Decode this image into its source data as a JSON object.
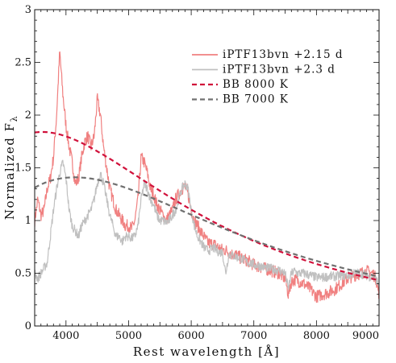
{
  "chart_data": {
    "type": "line",
    "title": "",
    "xlabel": "Rest wavelength [Å]",
    "ylabel": "Normalized F",
    "ylabel_subscript": "λ",
    "xlim": [
      3500,
      9000
    ],
    "ylim": [
      0,
      3
    ],
    "grid": false,
    "legend_placement": "top-right",
    "x_ticks": [
      4000,
      5000,
      6000,
      7000,
      8000,
      9000
    ],
    "x_tick_labels": [
      "4000",
      "5000",
      "6000",
      "7000",
      "8000",
      "9000"
    ],
    "y_ticks": [
      0,
      0.5,
      1,
      1.5,
      2,
      2.5,
      3
    ],
    "y_tick_labels": [
      "0",
      "0.5",
      "1",
      "1.5",
      "2",
      "2.5",
      "3"
    ],
    "series": [
      {
        "name": "iPTF13bvn +2.15 d",
        "style": "solid",
        "color": "#f08080",
        "x": [
          3500,
          3550,
          3600,
          3650,
          3700,
          3750,
          3800,
          3850,
          3900,
          3950,
          4000,
          4050,
          4100,
          4150,
          4200,
          4250,
          4300,
          4350,
          4400,
          4450,
          4500,
          4550,
          4600,
          4650,
          4700,
          4750,
          4800,
          4850,
          4900,
          4950,
          5000,
          5050,
          5100,
          5150,
          5200,
          5250,
          5300,
          5350,
          5400,
          5450,
          5500,
          5550,
          5600,
          5650,
          5700,
          5750,
          5800,
          5850,
          5900,
          5950,
          6000,
          6050,
          6100,
          6150,
          6200,
          6250,
          6300,
          6350,
          6400,
          6450,
          6500,
          6550,
          6600,
          6650,
          6700,
          6750,
          6800,
          6850,
          6900,
          6950,
          7000,
          7100,
          7200,
          7300,
          7400,
          7500,
          7550,
          7600,
          7650,
          7700,
          7800,
          7900,
          8000,
          8100,
          8200,
          8300,
          8400,
          8500,
          8600,
          8700,
          8800,
          8900,
          8950,
          9000
        ],
        "y": [
          1.0,
          1.2,
          1.05,
          1.1,
          1.3,
          1.4,
          1.6,
          2.0,
          2.6,
          2.2,
          1.9,
          1.7,
          1.55,
          1.35,
          1.4,
          1.6,
          1.75,
          1.8,
          1.7,
          1.8,
          2.15,
          2.0,
          1.7,
          1.5,
          1.3,
          1.2,
          1.1,
          1.05,
          1.0,
          0.95,
          0.95,
          0.92,
          1.0,
          1.2,
          1.6,
          1.55,
          1.45,
          1.3,
          1.25,
          1.15,
          1.1,
          1.05,
          1.0,
          1.05,
          1.1,
          1.2,
          1.25,
          1.3,
          1.32,
          1.25,
          1.1,
          1.0,
          0.95,
          0.9,
          0.85,
          0.8,
          0.78,
          0.78,
          0.76,
          0.74,
          0.72,
          0.72,
          0.7,
          0.68,
          0.68,
          0.66,
          0.64,
          0.63,
          0.62,
          0.6,
          0.58,
          0.56,
          0.54,
          0.52,
          0.5,
          0.45,
          0.3,
          0.42,
          0.44,
          0.43,
          0.4,
          0.35,
          0.28,
          0.3,
          0.32,
          0.35,
          0.4,
          0.45,
          0.48,
          0.5,
          0.52,
          0.5,
          0.45,
          0.3
        ]
      },
      {
        "name": "iPTF13bvn +2.3 d",
        "style": "solid",
        "color": "#c0c0c0",
        "x": [
          3500,
          3550,
          3600,
          3650,
          3700,
          3750,
          3800,
          3850,
          3900,
          3950,
          4000,
          4050,
          4100,
          4150,
          4200,
          4250,
          4300,
          4350,
          4400,
          4450,
          4500,
          4550,
          4600,
          4650,
          4700,
          4750,
          4800,
          4850,
          4900,
          4950,
          5000,
          5050,
          5100,
          5150,
          5200,
          5250,
          5300,
          5350,
          5400,
          5450,
          5500,
          5550,
          5600,
          5650,
          5700,
          5750,
          5800,
          5850,
          5900,
          5950,
          6000,
          6050,
          6100,
          6150,
          6200,
          6250,
          6300,
          6350,
          6400,
          6450,
          6500,
          6550,
          6600,
          6650,
          6700,
          6750,
          6800,
          6850,
          6900,
          6950,
          7000,
          7100,
          7200,
          7300,
          7400,
          7500,
          7550,
          7600,
          7650,
          7700,
          7800,
          7900,
          8000,
          8100,
          8200,
          8300,
          8400,
          8500,
          8600,
          8700,
          8800,
          8900,
          8950,
          9000
        ],
        "y": [
          0.5,
          0.45,
          0.5,
          0.55,
          0.6,
          0.85,
          1.1,
          1.3,
          1.45,
          1.55,
          1.4,
          1.1,
          0.95,
          0.9,
          0.85,
          0.95,
          1.0,
          1.05,
          1.1,
          1.2,
          1.35,
          1.45,
          1.35,
          1.2,
          1.05,
          0.95,
          0.85,
          0.85,
          0.8,
          0.85,
          0.85,
          0.83,
          0.85,
          0.95,
          1.2,
          1.35,
          1.3,
          1.2,
          1.15,
          1.05,
          1.0,
          1.0,
          0.98,
          1.0,
          1.05,
          1.1,
          1.2,
          1.3,
          1.35,
          1.3,
          1.1,
          0.95,
          0.85,
          0.8,
          0.75,
          0.72,
          0.72,
          0.74,
          0.72,
          0.7,
          0.7,
          0.5,
          0.68,
          0.67,
          0.66,
          0.65,
          0.64,
          0.62,
          0.6,
          0.6,
          0.58,
          0.57,
          0.55,
          0.54,
          0.53,
          0.5,
          0.35,
          0.5,
          0.52,
          0.5,
          0.5,
          0.48,
          0.46,
          0.46,
          0.47,
          0.47,
          0.48,
          0.48,
          0.5,
          0.5,
          0.48,
          0.46,
          0.44,
          0.4
        ]
      },
      {
        "name": "BB 8000 K",
        "style": "dashed",
        "color": "#d0103a",
        "temperature_K": 8000,
        "peak_normalized": 1.84
      },
      {
        "name": "BB 7000 K",
        "style": "dashed",
        "color": "#707070",
        "temperature_K": 7000,
        "peak_normalized": 1.41
      }
    ]
  }
}
